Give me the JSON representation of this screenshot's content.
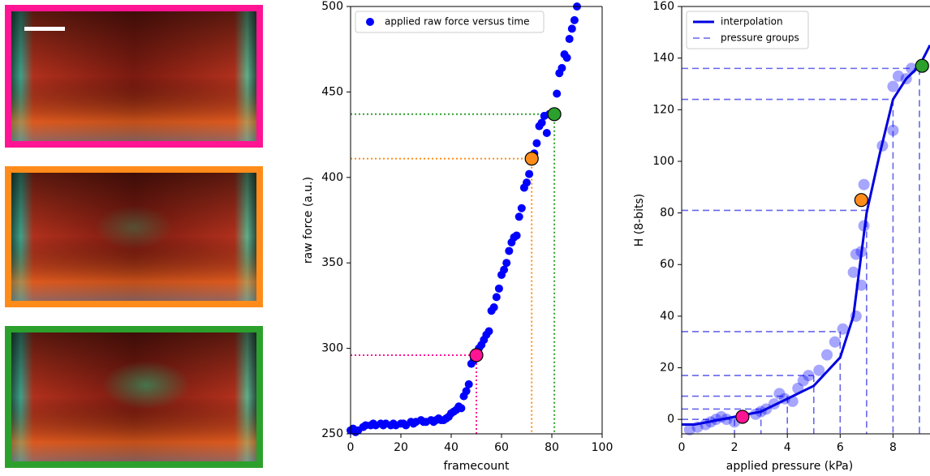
{
  "chart_data": [
    {
      "type": "scatter",
      "xlabel": "framecount",
      "ylabel": "raw force (a.u.)",
      "xlim": [
        0,
        100
      ],
      "ylim": [
        250,
        500
      ],
      "xticks": [
        0,
        20,
        40,
        60,
        80,
        100
      ],
      "yticks": [
        250,
        300,
        350,
        400,
        450,
        500
      ],
      "series": [
        {
          "name": "applied raw force versus time",
          "color": "#0000ff",
          "x": [
            0,
            1,
            2,
            3,
            5,
            6,
            8,
            9,
            10,
            12,
            13,
            14,
            16,
            17,
            18,
            20,
            21,
            22,
            24,
            25,
            26,
            28,
            29,
            30,
            32,
            33,
            34,
            35,
            36,
            37,
            38,
            39,
            40,
            41,
            42,
            43,
            44,
            45,
            46,
            47,
            48,
            49,
            51,
            52,
            53,
            54,
            55,
            56,
            57,
            58,
            59,
            60,
            61,
            62,
            63,
            64,
            65,
            66,
            67,
            68,
            69,
            70,
            71,
            73,
            74,
            75,
            76,
            77,
            78,
            79,
            80,
            82,
            83,
            84,
            85,
            86,
            87,
            88,
            89,
            90
          ],
          "values": [
            252,
            253,
            251,
            252,
            254,
            255,
            255,
            256,
            255,
            256,
            255,
            256,
            255,
            256,
            255,
            256,
            256,
            255,
            257,
            256,
            257,
            258,
            257,
            257,
            258,
            257,
            258,
            259,
            258,
            258,
            259,
            260,
            262,
            263,
            264,
            266,
            265,
            272,
            275,
            279,
            291,
            293,
            300,
            302,
            305,
            308,
            310,
            322,
            324,
            330,
            335,
            343,
            346,
            350,
            357,
            362,
            365,
            366,
            377,
            382,
            394,
            397,
            402,
            414,
            420,
            430,
            432,
            436,
            426,
            437,
            436,
            449,
            461,
            464,
            472,
            470,
            481,
            487,
            492,
            500
          ]
        }
      ],
      "markers": {
        "x": [
          50,
          72,
          81
        ],
        "values": [
          296,
          411,
          437
        ],
        "colors": [
          "#ff1493",
          "#ff8c1a",
          "#2ca02c"
        ]
      }
    },
    {
      "type": "line",
      "xlabel": "applied pressure (kPa)",
      "ylabel": "H (8-bits)",
      "xlim": [
        0,
        9.4
      ],
      "ylim": [
        -5.6,
        160
      ],
      "xticks": [
        0,
        2,
        4,
        6,
        8
      ],
      "yticks": [
        0,
        20,
        40,
        60,
        80,
        100,
        120,
        140,
        160
      ],
      "series": [
        {
          "name": "interpolation",
          "color": "#0000e0",
          "x": [
            0,
            0.5,
            1,
            2,
            3,
            4,
            5,
            6,
            6.5,
            7,
            7.5,
            8,
            8.5,
            9,
            9.4
          ],
          "values": [
            -2,
            -2,
            -1,
            1,
            3,
            8,
            13,
            24,
            40,
            80,
            103,
            124,
            132,
            137,
            145
          ]
        },
        {
          "name": "pressure groups",
          "color": "#6666ee",
          "style": "dashed",
          "x": [
            2,
            3,
            4,
            5,
            6,
            7,
            8,
            9
          ],
          "values": [
            0,
            4,
            9,
            17,
            34,
            81,
            124,
            136
          ]
        }
      ],
      "points": {
        "color": "#0000ff",
        "x": [
          0.3,
          0.6,
          0.9,
          1.1,
          1.3,
          1.5,
          1.7,
          2.0,
          2.8,
          3.0,
          3.2,
          3.5,
          3.7,
          3.9,
          4.2,
          4.4,
          4.6,
          4.8,
          5.2,
          5.5,
          5.8,
          6.1,
          6.5,
          6.6,
          6.6,
          6.8,
          6.8,
          6.9,
          6.9,
          7.6,
          8.0,
          8.0,
          8.2,
          8.5,
          8.7
        ],
        "values": [
          -4,
          -3,
          -2,
          -1,
          0,
          1,
          0,
          -1,
          2,
          3,
          4,
          6,
          10,
          8,
          7,
          12,
          15,
          17,
          19,
          25,
          30,
          35,
          57,
          64,
          40,
          52,
          65,
          75,
          91,
          106,
          112,
          129,
          133,
          132,
          136
        ]
      },
      "markers": {
        "x": [
          2.3,
          6.8,
          9.1
        ],
        "values": [
          1,
          85,
          137
        ],
        "colors": [
          "#ff1493",
          "#ff8c1a",
          "#2ca02c"
        ]
      }
    }
  ]
}
